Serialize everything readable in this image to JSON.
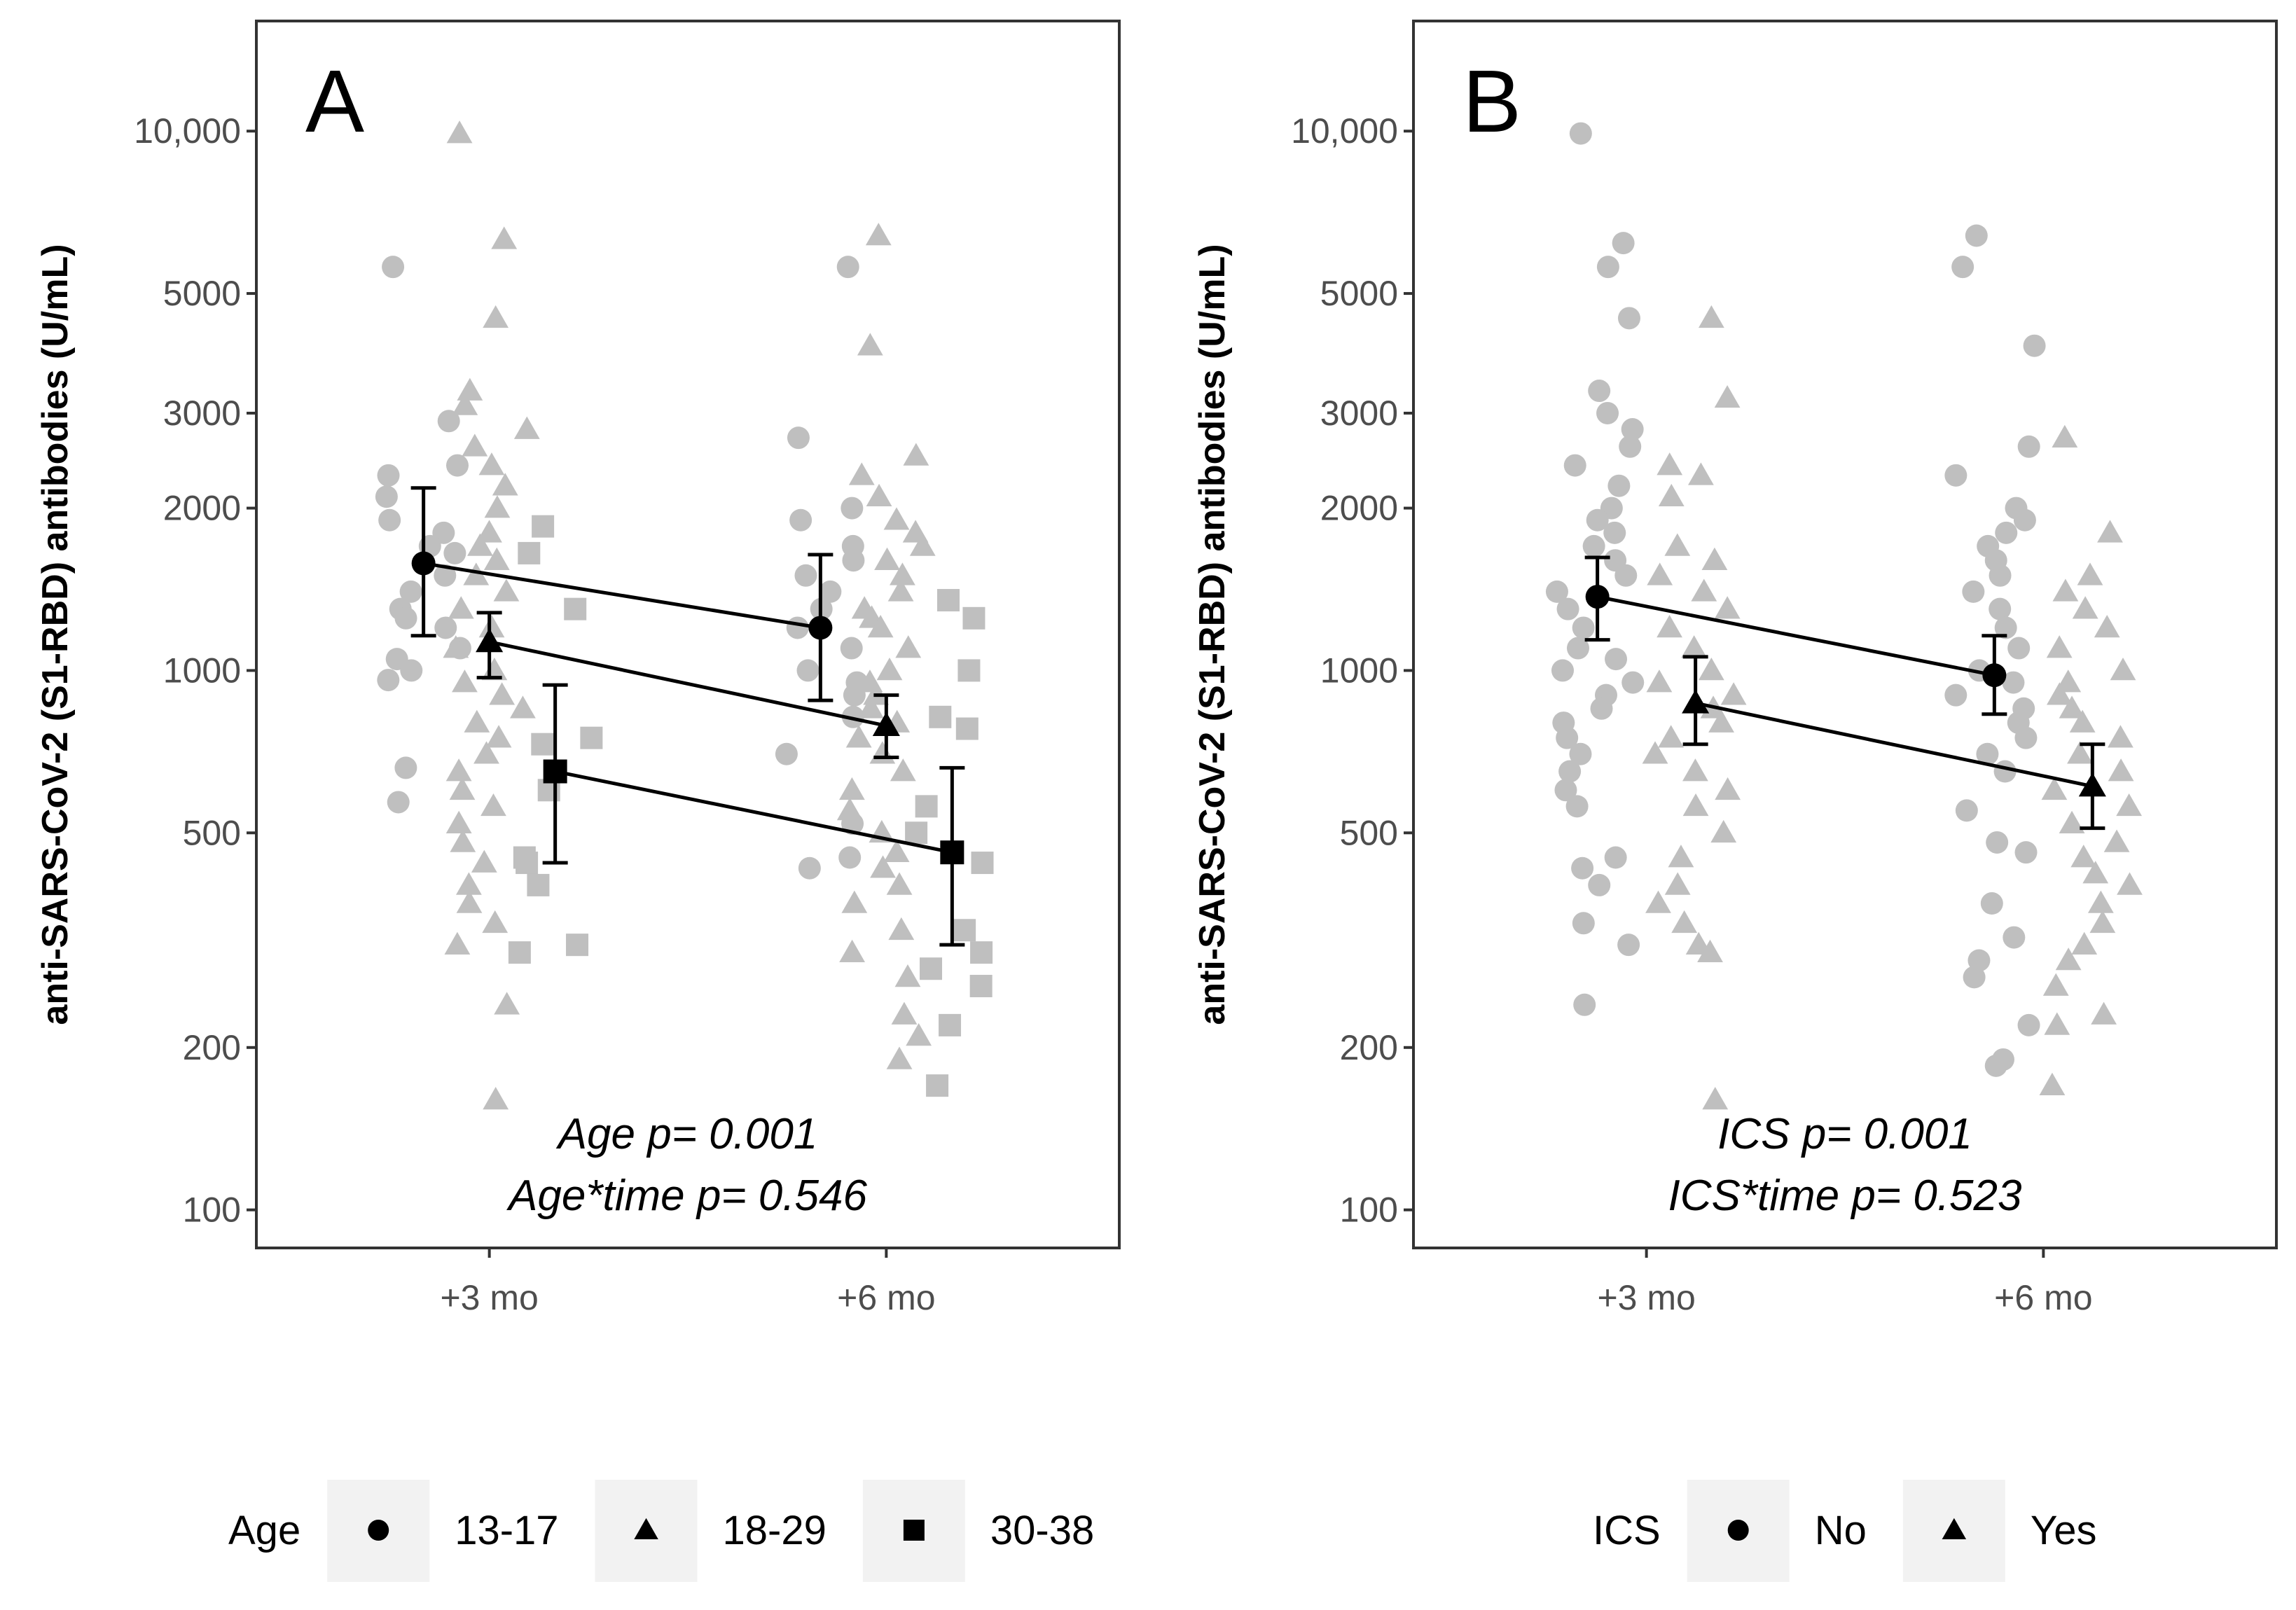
{
  "colors": {
    "raw_points": "#bfbfbf",
    "summary": "#000000",
    "panel_border": "#333333",
    "legend_key_bg": "#f2f2f2",
    "tick_text": "#4d4d4d"
  },
  "chart_data": [
    {
      "type": "scatter",
      "panel_label": "A",
      "ylabel": "anti-SARS-CoV-2 (S1-RBD) antibodies (U/mL)",
      "yscale": "log10",
      "ylim": [
        85,
        16000
      ],
      "yticks": [
        100,
        200,
        500,
        1000,
        2000,
        3000,
        5000,
        10000
      ],
      "ytick_labels": [
        "100",
        "200",
        "500",
        "1000",
        "2000",
        "3000",
        "5000",
        "10,000"
      ],
      "categories": [
        "+3 mo",
        "+6 mo"
      ],
      "annotations": [
        "Age p= 0.001",
        "Age*time p= 0.546"
      ],
      "legend": {
        "title": "Age",
        "entries": [
          "13-17",
          "18-29",
          "30-38"
        ],
        "position": "bottom"
      },
      "series": [
        {
          "name": "13-17",
          "shape": "circle",
          "summary": [
            {
              "x": "+3 mo",
              "y": 1580,
              "lower": 1160,
              "upper": 2180
            },
            {
              "x": "+6 mo",
              "y": 1200,
              "lower": 880,
              "upper": 1640
            }
          ],
          "raw": [
            {
              "x": "+3 mo",
              "values": [
                5600,
                2900,
                2400,
                2300,
                2100,
                1900,
                1800,
                1700,
                1650,
                1500,
                1400,
                1300,
                1250,
                1200,
                1100,
                1050,
                1000,
                960,
                660,
                570
              ]
            },
            {
              "x": "+6 mo",
              "values": [
                5600,
                2700,
                2000,
                1900,
                1700,
                1600,
                1500,
                1400,
                1300,
                1200,
                1100,
                1000,
                950,
                900,
                820,
                700,
                520,
                450,
                430
              ]
            }
          ]
        },
        {
          "name": "18-29",
          "shape": "triangle",
          "summary": [
            {
              "x": "+3 mo",
              "y": 1130,
              "lower": 970,
              "upper": 1280
            },
            {
              "x": "+6 mo",
              "y": 790,
              "lower": 690,
              "upper": 900
            }
          ],
          "raw": [
            {
              "x": "+3 mo",
              "values": [
                9900,
                6300,
                4500,
                3300,
                3100,
                2800,
                2600,
                2400,
                2200,
                2000,
                1800,
                1700,
                1600,
                1500,
                1400,
                1300,
                1200,
                1100,
                1000,
                950,
                900,
                850,
                800,
                750,
                700,
                650,
                600,
                560,
                520,
                480,
                440,
                400,
                370,
                340,
                310,
                240,
                160
              ]
            },
            {
              "x": "+6 mo",
              "values": [
                6400,
                4000,
                2500,
                2300,
                2100,
                1900,
                1800,
                1700,
                1600,
                1500,
                1400,
                1300,
                1250,
                1200,
                1100,
                1000,
                950,
                900,
                850,
                800,
                750,
                700,
                650,
                600,
                550,
                500,
                460,
                430,
                400,
                370,
                330,
                300,
                270,
                230,
                210,
                190
              ]
            }
          ]
        },
        {
          "name": "30-38",
          "shape": "square",
          "summary": [
            {
              "x": "+3 mo",
              "y": 650,
              "lower": 440,
              "upper": 940
            },
            {
              "x": "+6 mo",
              "y": 460,
              "lower": 310,
              "upper": 660
            }
          ],
          "raw": [
            {
              "x": "+3 mo",
              "values": [
                1850,
                1650,
                1300,
                750,
                730,
                600,
                450,
                440,
                400,
                310,
                300
              ]
            },
            {
              "x": "+6 mo",
              "values": [
                1350,
                1250,
                1000,
                820,
                780,
                560,
                500,
                440,
                330,
                300,
                280,
                260,
                220,
                170
              ]
            }
          ]
        }
      ]
    },
    {
      "type": "scatter",
      "panel_label": "B",
      "ylabel": "anti-SARS-CoV-2 (S1-RBD) antibodies (U/mL)",
      "yscale": "log10",
      "ylim": [
        85,
        16000
      ],
      "yticks": [
        100,
        200,
        500,
        1000,
        2000,
        3000,
        5000,
        10000
      ],
      "ytick_labels": [
        "100",
        "200",
        "500",
        "1000",
        "2000",
        "3000",
        "5000",
        "10,000"
      ],
      "categories": [
        "+3 mo",
        "+6 mo"
      ],
      "annotations": [
        "ICS p= 0.001",
        "ICS*time p= 0.523"
      ],
      "legend": {
        "title": "ICS",
        "entries": [
          "No",
          "Yes"
        ],
        "position": "bottom"
      },
      "series": [
        {
          "name": "No",
          "shape": "circle",
          "summary": [
            {
              "x": "+3 mo",
              "y": 1370,
              "lower": 1140,
              "upper": 1620
            },
            {
              "x": "+6 mo",
              "y": 980,
              "lower": 830,
              "upper": 1160
            }
          ],
          "raw": [
            {
              "x": "+3 mo",
              "values": [
                9900,
                6200,
                5600,
                4500,
                3300,
                3000,
                2800,
                2600,
                2400,
                2200,
                2000,
                1900,
                1800,
                1700,
                1600,
                1500,
                1400,
                1300,
                1200,
                1100,
                1050,
                1000,
                950,
                900,
                850,
                800,
                750,
                700,
                650,
                600,
                560,
                450,
                430,
                400,
                340,
                310,
                240
              ]
            },
            {
              "x": "+6 mo",
              "values": [
                6400,
                5600,
                4000,
                2600,
                2300,
                2000,
                1900,
                1800,
                1700,
                1600,
                1500,
                1400,
                1300,
                1200,
                1100,
                1000,
                950,
                900,
                850,
                800,
                750,
                700,
                650,
                550,
                480,
                460,
                370,
                320,
                290,
                270,
                220,
                190,
                185
              ]
            }
          ]
        },
        {
          "name": "Yes",
          "shape": "triangle",
          "summary": [
            {
              "x": "+3 mo",
              "y": 870,
              "lower": 730,
              "upper": 1060
            },
            {
              "x": "+6 mo",
              "y": 610,
              "lower": 510,
              "upper": 730
            }
          ],
          "raw": [
            {
              "x": "+3 mo",
              "values": [
                4500,
                3200,
                2400,
                2300,
                2100,
                1700,
                1600,
                1500,
                1400,
                1300,
                1200,
                1100,
                1000,
                950,
                900,
                850,
                800,
                750,
                700,
                650,
                600,
                560,
                500,
                450,
                400,
                370,
                340,
                310,
                300,
                160
              ]
            },
            {
              "x": "+6 mo",
              "values": [
                2700,
                1800,
                1500,
                1400,
                1300,
                1200,
                1100,
                1000,
                950,
                900,
                850,
                800,
                750,
                700,
                650,
                600,
                560,
                520,
                480,
                450,
                420,
                400,
                370,
                340,
                310,
                290,
                260,
                230,
                220,
                170
              ]
            }
          ]
        }
      ]
    }
  ]
}
